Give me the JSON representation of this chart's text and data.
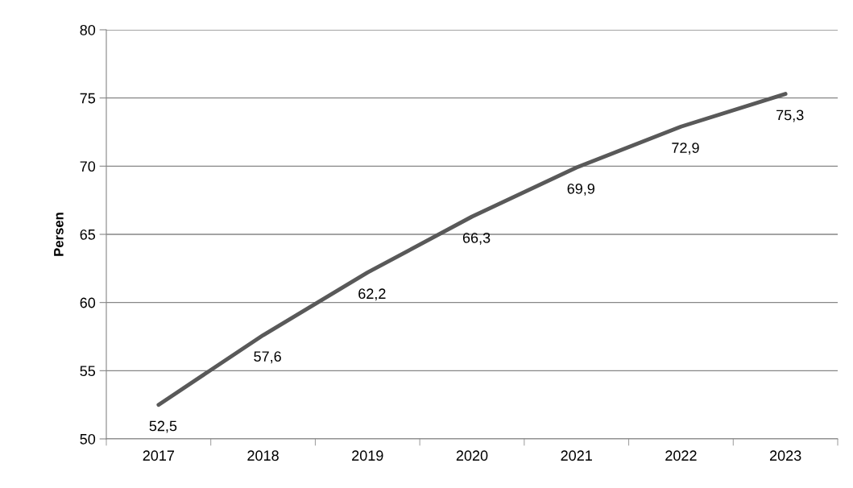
{
  "chart_data": {
    "type": "line",
    "ylabel": "Persen",
    "categories": [
      "2017",
      "2018",
      "2019",
      "2020",
      "2021",
      "2022",
      "2023"
    ],
    "series": [
      {
        "color": "#595959",
        "values": [
          52.5,
          57.6,
          62.2,
          66.3,
          69.9,
          72.9,
          75.3
        ],
        "value_labels": [
          "52,5",
          "57,6",
          "62,2",
          "66,3",
          "69,9",
          "72,9",
          "75,3"
        ]
      }
    ],
    "ylim": [
      50,
      80
    ],
    "yticks": [
      50,
      55,
      60,
      65,
      70,
      75,
      80
    ],
    "grid": "y",
    "marker": "none",
    "line_style": "solid",
    "legend": false
  }
}
